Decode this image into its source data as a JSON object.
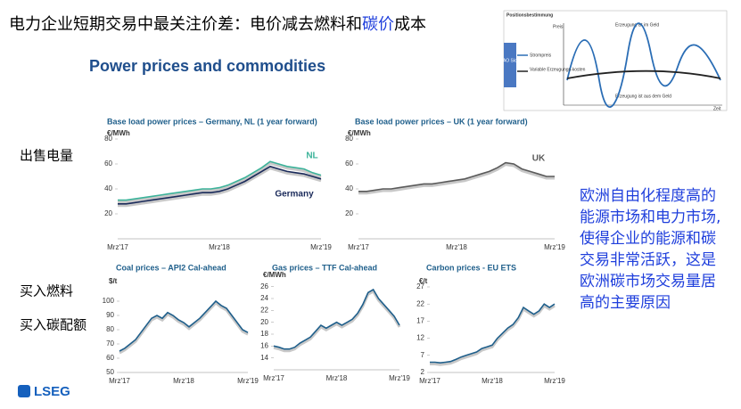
{
  "slide": {
    "title_parts": [
      "电力企业短期交易中最关注价差：电价减去燃料和",
      "碳价",
      "成本"
    ],
    "subtitle": "Power prices and commodities",
    "side_labels": [
      "出售电量",
      "买入燃料",
      "买入碳配额"
    ],
    "note_lines": [
      "欧洲自由化程度高的",
      "能源市场和电力市场,",
      "使得企业的能源和碳",
      "交易非常活跃，这是",
      "欧洲碳市场交易量居",
      "高的主要原因"
    ],
    "logo": "LSEG"
  },
  "diagram": {
    "title": "Positionsbestimmung",
    "y_label": "Preis",
    "x_label": "Zeit",
    "in_money": "Erzeugung ist im Geld",
    "out_money": "Erzeugung ist aus dem Geld",
    "side": "CAO Sicht",
    "legend": [
      "Strompreis",
      "Variable Erzeugungs-kosten"
    ]
  },
  "chart_data": [
    {
      "type": "line",
      "title": "Base load power prices – Germany, NL (1 year forward)",
      "unit": "€/MWh",
      "categories": [
        "Mrz'17",
        null,
        null,
        null,
        null,
        null,
        null,
        null,
        null,
        null,
        null,
        null,
        "Mrz'18",
        null,
        null,
        null,
        null,
        null,
        null,
        null,
        null,
        null,
        null,
        null,
        "Mrz'19"
      ],
      "series": [
        {
          "name": "NL",
          "color": "#3cb39a",
          "values": [
            31,
            31,
            32,
            33,
            34,
            35,
            36,
            37,
            38,
            39,
            40,
            40,
            41,
            43,
            46,
            49,
            53,
            57,
            62,
            60,
            58,
            57,
            56,
            53,
            51
          ]
        },
        {
          "name": "Germany",
          "color": "#1a2a5a",
          "values": [
            28,
            28,
            29,
            30,
            31,
            32,
            33,
            34,
            35,
            36,
            37,
            37,
            38,
            40,
            43,
            46,
            50,
            54,
            58,
            56,
            54,
            53,
            52,
            50,
            48
          ]
        }
      ],
      "ylim": [
        0,
        80
      ],
      "yticks": [
        20,
        40,
        60,
        80
      ],
      "grid": false
    },
    {
      "type": "line",
      "title": "Base load power prices – UK (1 year forward)",
      "unit": "€/MWh",
      "categories": [
        "Mrz'17",
        null,
        null,
        null,
        null,
        null,
        null,
        null,
        null,
        null,
        null,
        null,
        "Mrz'18",
        null,
        null,
        null,
        null,
        null,
        null,
        null,
        null,
        null,
        null,
        null,
        "Mrz'19"
      ],
      "series": [
        {
          "name": "UK",
          "color": "#5a5a5a",
          "values": [
            38,
            38,
            39,
            40,
            40,
            41,
            42,
            43,
            44,
            44,
            45,
            46,
            47,
            48,
            50,
            52,
            54,
            57,
            61,
            60,
            56,
            54,
            52,
            50,
            50
          ]
        }
      ],
      "ylim": [
        0,
        80
      ],
      "yticks": [
        20,
        40,
        60,
        80
      ],
      "grid": false
    },
    {
      "type": "line",
      "title": "Coal prices – API2 Cal-ahead",
      "unit": "$/t",
      "categories": [
        "Mrz'17",
        null,
        null,
        null,
        null,
        null,
        null,
        null,
        null,
        null,
        null,
        null,
        "Mrz'18",
        null,
        null,
        null,
        null,
        null,
        null,
        null,
        null,
        null,
        null,
        null,
        "Mrz'19"
      ],
      "series": [
        {
          "name": null,
          "color": "#1f5f8b",
          "values": [
            65,
            67,
            70,
            73,
            78,
            83,
            88,
            90,
            88,
            92,
            90,
            87,
            85,
            82,
            85,
            88,
            92,
            96,
            100,
            97,
            95,
            90,
            85,
            80,
            78
          ]
        }
      ],
      "ylim": [
        50,
        110
      ],
      "yticks": [
        50,
        60,
        70,
        80,
        90,
        100
      ],
      "grid": false
    },
    {
      "type": "line",
      "title": "Gas prices – TTF Cal-ahead",
      "unit": "€/MWh",
      "categories": [
        "Mrz'17",
        null,
        null,
        null,
        null,
        null,
        null,
        null,
        null,
        null,
        null,
        null,
        "Mrz'18",
        null,
        null,
        null,
        null,
        null,
        null,
        null,
        null,
        null,
        null,
        null,
        "Mrz'19"
      ],
      "series": [
        {
          "name": null,
          "color": "#1f5f8b",
          "values": [
            16,
            15.8,
            15.5,
            15.5,
            15.8,
            16.5,
            17,
            17.5,
            18.5,
            19.5,
            19,
            19.5,
            20,
            19.5,
            20,
            20.5,
            21.5,
            23,
            25,
            25.5,
            24,
            23,
            22,
            21,
            19.5
          ]
        }
      ],
      "ylim": [
        12,
        27
      ],
      "yticks": [
        14,
        16,
        18,
        20,
        22,
        24,
        26
      ],
      "grid": false
    },
    {
      "type": "line",
      "title": "Carbon prices - EU ETS",
      "unit": "€/t",
      "categories": [
        "Mrz'17",
        null,
        null,
        null,
        null,
        null,
        null,
        null,
        null,
        null,
        null,
        null,
        "Mrz'18",
        null,
        null,
        null,
        null,
        null,
        null,
        null,
        null,
        null,
        null,
        null,
        "Mrz'19"
      ],
      "series": [
        {
          "name": null,
          "color": "#1f5f8b",
          "values": [
            5,
            5,
            4.8,
            5,
            5.2,
            5.8,
            6.5,
            7,
            7.5,
            8,
            9,
            9.5,
            10,
            12,
            13.5,
            15,
            16,
            18,
            21,
            20,
            19,
            20,
            22,
            21,
            22
          ]
        }
      ],
      "ylim": [
        2,
        27
      ],
      "yticks": [
        2,
        7,
        12,
        17,
        22,
        27
      ],
      "grid": false
    }
  ]
}
